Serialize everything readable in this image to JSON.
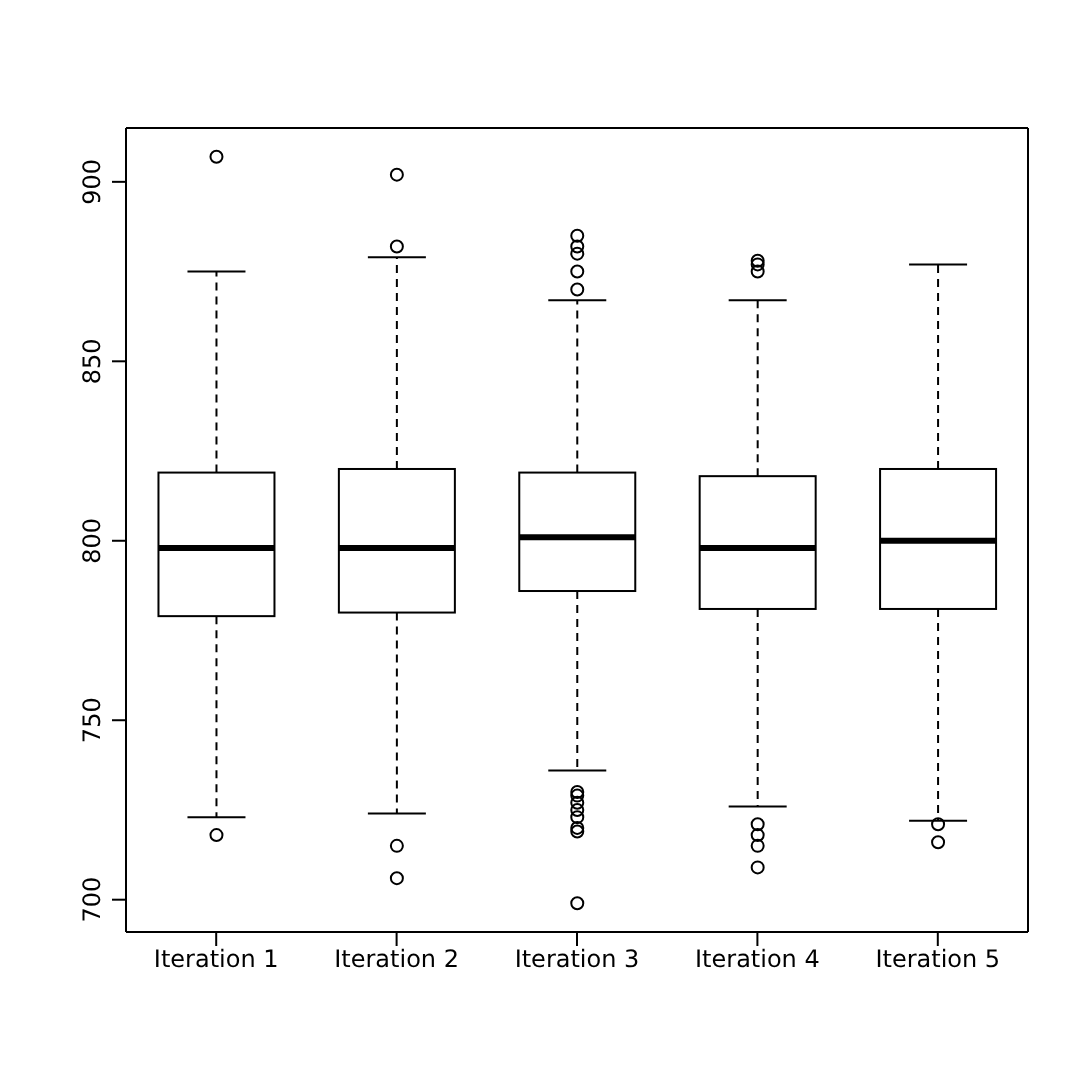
{
  "chart_data": {
    "type": "box",
    "categories": [
      "Iteration 1",
      "Iteration 2",
      "Iteration 3",
      "Iteration 4",
      "Iteration 5"
    ],
    "boxes": [
      {
        "low": 723,
        "q1": 779,
        "median": 798,
        "q3": 819,
        "high": 875,
        "outliers": [
          907,
          718
        ]
      },
      {
        "low": 724,
        "q1": 780,
        "median": 798,
        "q3": 820,
        "high": 879,
        "outliers": [
          902,
          882,
          715,
          706
        ]
      },
      {
        "low": 736,
        "q1": 786,
        "median": 801,
        "q3": 819,
        "high": 867,
        "outliers": [
          885,
          882,
          880,
          875,
          870,
          730,
          729,
          727,
          725,
          723,
          720,
          719,
          699
        ]
      },
      {
        "low": 726,
        "q1": 781,
        "median": 798,
        "q3": 818,
        "high": 867,
        "outliers": [
          878,
          877,
          875,
          721,
          718,
          715,
          709
        ]
      },
      {
        "low": 722,
        "q1": 781,
        "median": 800,
        "q3": 820,
        "high": 877,
        "outliers": [
          721,
          716
        ]
      }
    ],
    "ylim": [
      691,
      915
    ],
    "yticks": [
      700,
      750,
      800,
      850,
      900
    ]
  }
}
